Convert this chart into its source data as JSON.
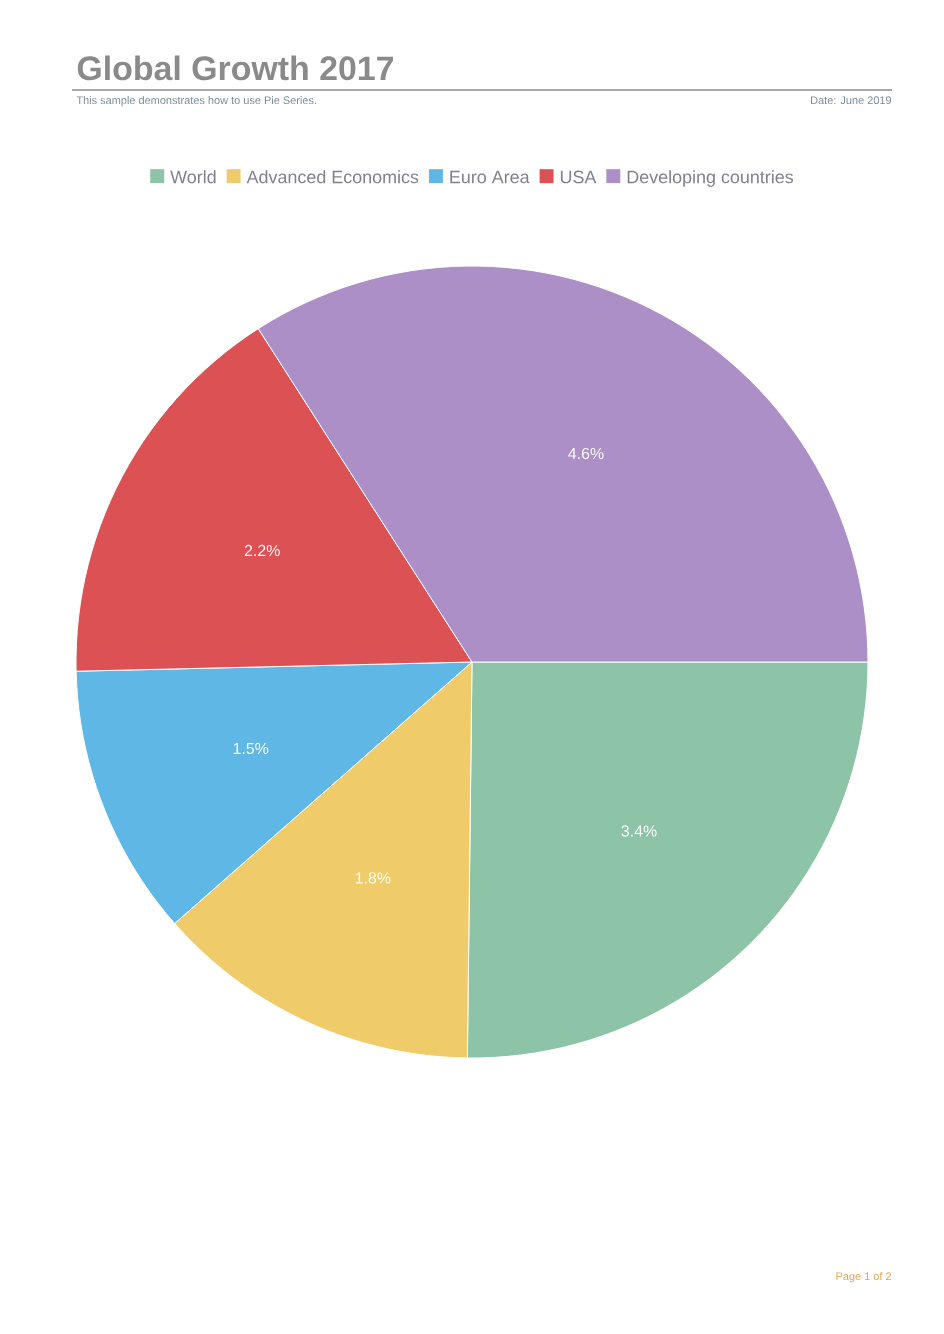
{
  "chart_data": {
    "type": "pie",
    "title": "Global Growth 2017",
    "subtitle": "This sample demonstrates how to use Pie Series.",
    "categories": [
      "World",
      "Advanced Economics",
      "Euro Area",
      "USA",
      "Developing countries"
    ],
    "values": [
      3.4,
      1.8,
      1.5,
      2.2,
      4.6
    ],
    "value_labels": [
      "3.4%",
      "1.8%",
      "1.5%",
      "2.2%",
      "4.6%"
    ],
    "colors": [
      "#8dc3a7",
      "#f0cb69",
      "#5fb7e5",
      "#dc5153",
      "#ab8fc6"
    ],
    "legend": "top",
    "annotations": [
      "Date: June 2019",
      "Page 1 of 2"
    ]
  }
}
